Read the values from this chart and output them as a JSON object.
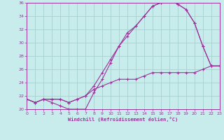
{
  "xlabel": "Windchill (Refroidissement éolien,°C)",
  "bg_color": "#c8ecec",
  "grid_color": "#a8d0d0",
  "line_color": "#993399",
  "xlim": [
    0,
    23
  ],
  "ylim": [
    20,
    36
  ],
  "xticks": [
    0,
    1,
    2,
    3,
    4,
    5,
    6,
    7,
    8,
    9,
    10,
    11,
    12,
    13,
    14,
    15,
    16,
    17,
    18,
    19,
    20,
    21,
    22,
    23
  ],
  "yticks": [
    20,
    22,
    24,
    26,
    28,
    30,
    32,
    34,
    36
  ],
  "line1_x": [
    0,
    1,
    2,
    3,
    4,
    5,
    6,
    7,
    8,
    9,
    10,
    11,
    12,
    13,
    14,
    15,
    16,
    17,
    18,
    19,
    20,
    21,
    22,
    23
  ],
  "line1_y": [
    21.5,
    21.0,
    21.5,
    21.0,
    20.5,
    20.0,
    20.0,
    20.0,
    22.5,
    24.5,
    27.0,
    29.5,
    31.5,
    32.5,
    34.0,
    35.5,
    36.0,
    36.5,
    35.8,
    35.0,
    33.0,
    29.5,
    26.5,
    26.5
  ],
  "line2_x": [
    0,
    1,
    2,
    3,
    4,
    5,
    6,
    7,
    8,
    9,
    10,
    11,
    12,
    13,
    14,
    15,
    16,
    17,
    18,
    19,
    20,
    21,
    22,
    23
  ],
  "line2_y": [
    21.5,
    21.0,
    21.5,
    21.5,
    21.5,
    21.0,
    21.5,
    22.0,
    23.5,
    25.5,
    27.5,
    29.5,
    31.0,
    32.5,
    34.0,
    35.5,
    36.0,
    36.5,
    35.8,
    35.0,
    33.0,
    29.5,
    26.5,
    26.5
  ],
  "line3_x": [
    0,
    1,
    2,
    3,
    4,
    5,
    6,
    7,
    8,
    9,
    10,
    11,
    12,
    13,
    14,
    15,
    16,
    17,
    18,
    19,
    20,
    21,
    22,
    23
  ],
  "line3_y": [
    21.5,
    21.0,
    21.5,
    21.5,
    21.5,
    21.0,
    21.5,
    22.0,
    23.0,
    23.5,
    24.0,
    24.5,
    24.5,
    24.5,
    25.0,
    25.5,
    25.5,
    25.5,
    25.5,
    25.5,
    25.5,
    26.0,
    26.5,
    26.5
  ]
}
